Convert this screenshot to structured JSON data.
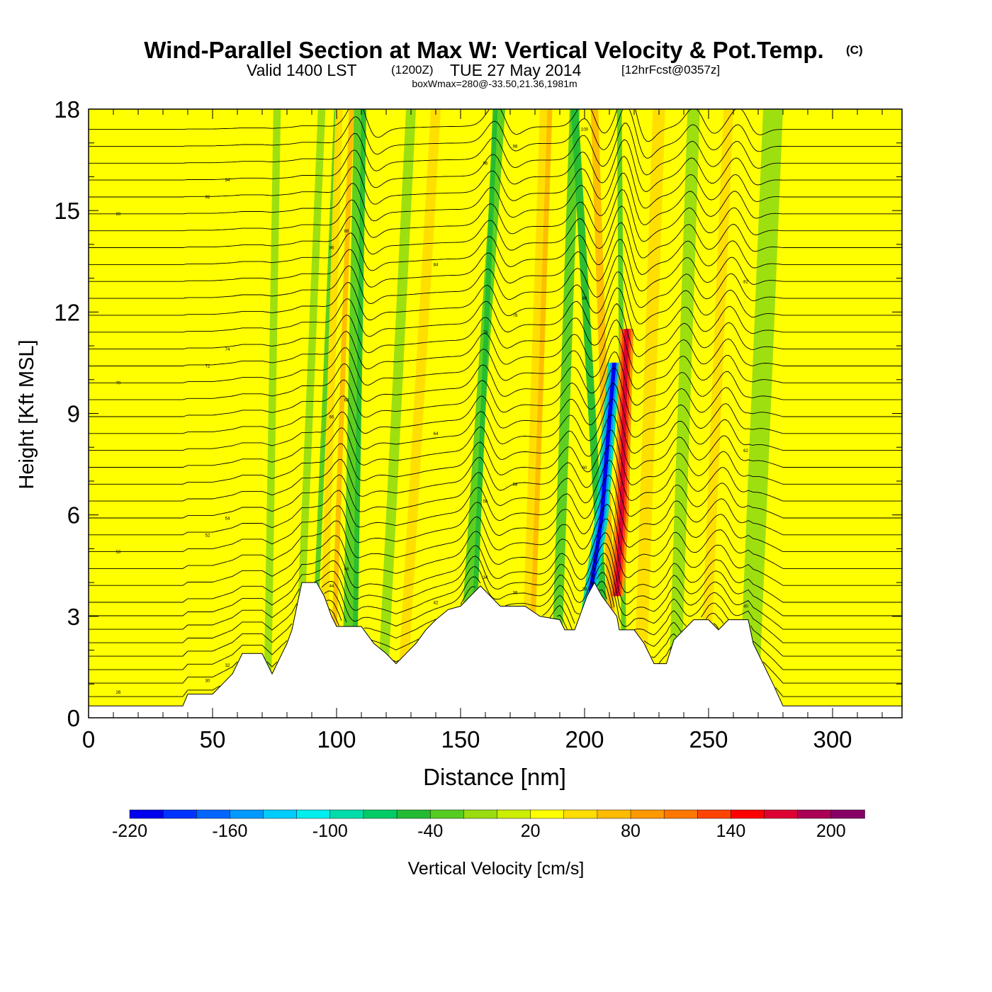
{
  "header": {
    "title": "Wind-Parallel Section at Max W: Vertical Velocity & Pot.Temp.",
    "title_mark": "(C)",
    "valid_prefix": "Valid 1400 LST",
    "valid_utc": "(1200Z)",
    "valid_date": "TUE 27 May 2014",
    "forecast": "[12hrFcst@0357z]",
    "box_info": "boxWmax=280@-33.50,21.36,1981m"
  },
  "chart_data": {
    "type": "heatmap",
    "title": "Wind-Parallel Section at Max W: Vertical Velocity & Pot.Temp.",
    "xlabel": "Distance [nm]",
    "ylabel": "Height [Kft MSL]",
    "xlim": [
      0,
      328
    ],
    "ylim": [
      0,
      18
    ],
    "xticks": [
      "0",
      "50",
      "100",
      "150",
      "200",
      "250",
      "300"
    ],
    "yticks": [
      "0",
      "3",
      "6",
      "9",
      "12",
      "15",
      "18"
    ],
    "colorbar": {
      "label": "Vertical Velocity [cm/s]",
      "ticks": [
        "-220",
        "-160",
        "-100",
        "-40",
        "20",
        "80",
        "140",
        "200"
      ],
      "range": [
        -220,
        220
      ],
      "step": 20,
      "colors": [
        "#0000ee",
        "#0033ff",
        "#0066ff",
        "#0099ff",
        "#00ccff",
        "#00eeee",
        "#00ddaa",
        "#00cc66",
        "#22bb33",
        "#55cc22",
        "#99dd11",
        "#ccee00",
        "#ffff00",
        "#ffdd00",
        "#ffbb00",
        "#ff9900",
        "#ff7700",
        "#ff4400",
        "#ff0000",
        "#dd0033",
        "#aa0055",
        "#880066"
      ]
    },
    "terrain_kft": [
      [
        0,
        0.35
      ],
      [
        38,
        0.35
      ],
      [
        40,
        0.7
      ],
      [
        50,
        0.7
      ],
      [
        54,
        1.0
      ],
      [
        58,
        1.3
      ],
      [
        62,
        1.9
      ],
      [
        70,
        1.9
      ],
      [
        72,
        1.6
      ],
      [
        74,
        1.3
      ],
      [
        76,
        1.6
      ],
      [
        78,
        1.9
      ],
      [
        80,
        2.2
      ],
      [
        82,
        2.6
      ],
      [
        84,
        3.3
      ],
      [
        86,
        4.0
      ],
      [
        92,
        4.0
      ],
      [
        95,
        3.6
      ],
      [
        98,
        3.0
      ],
      [
        100,
        2.7
      ],
      [
        110,
        2.7
      ],
      [
        115,
        2.2
      ],
      [
        120,
        1.9
      ],
      [
        124,
        1.6
      ],
      [
        128,
        1.9
      ],
      [
        132,
        2.2
      ],
      [
        136,
        2.6
      ],
      [
        140,
        2.9
      ],
      [
        145,
        3.2
      ],
      [
        150,
        3.3
      ],
      [
        154,
        3.6
      ],
      [
        158,
        3.9
      ],
      [
        162,
        3.6
      ],
      [
        166,
        3.3
      ],
      [
        176,
        3.3
      ],
      [
        182,
        3.0
      ],
      [
        190,
        2.9
      ],
      [
        192,
        2.6
      ],
      [
        196,
        2.6
      ],
      [
        198,
        3.0
      ],
      [
        201,
        3.6
      ],
      [
        204,
        4.0
      ],
      [
        207,
        3.6
      ],
      [
        210,
        3.3
      ],
      [
        213,
        3.0
      ],
      [
        214,
        2.6
      ],
      [
        220,
        2.6
      ],
      [
        224,
        2.2
      ],
      [
        228,
        1.6
      ],
      [
        233,
        1.6
      ],
      [
        236,
        2.3
      ],
      [
        240,
        2.6
      ],
      [
        244,
        2.9
      ],
      [
        250,
        2.9
      ],
      [
        254,
        2.6
      ],
      [
        258,
        2.9
      ],
      [
        266,
        2.9
      ],
      [
        268,
        2.2
      ],
      [
        272,
        1.6
      ],
      [
        276,
        1.0
      ],
      [
        280,
        0.35
      ],
      [
        328,
        0.35
      ]
    ],
    "bands": [
      {
        "x0": 72,
        "x1": 76,
        "value": -20,
        "width": 3
      },
      {
        "x0": 84,
        "x1": 94,
        "value": -20,
        "width": 3
      },
      {
        "x0": 90,
        "x1": 100,
        "value": -40,
        "width": 2
      },
      {
        "x0": 94,
        "x1": 101,
        "value": 40,
        "width": 3
      },
      {
        "x0": 98,
        "x1": 106,
        "value": 60,
        "width": 2
      },
      {
        "x0": 104,
        "x1": 109,
        "value": -40,
        "width": 4
      },
      {
        "x0": 107,
        "x1": 111,
        "value": -60,
        "width": 2
      },
      {
        "x0": 118,
        "x1": 130,
        "value": -20,
        "width": 4
      },
      {
        "x0": 126,
        "x1": 140,
        "value": 40,
        "width": 4
      },
      {
        "x0": 150,
        "x1": 166,
        "value": -40,
        "width": 4
      },
      {
        "x0": 154,
        "x1": 164,
        "value": -60,
        "width": 2
      },
      {
        "x0": 176,
        "x1": 184,
        "value": 40,
        "width": 4
      },
      {
        "x0": 178,
        "x1": 186,
        "value": 60,
        "width": 2
      },
      {
        "x0": 188,
        "x1": 196,
        "value": -40,
        "width": 4
      },
      {
        "x0": 210,
        "x1": 196,
        "value": -60,
        "width": 3
      },
      {
        "x0": 212,
        "x1": 204,
        "value": 60,
        "width": 3
      },
      {
        "x0": 216,
        "x1": 214,
        "value": -40,
        "width": 2
      },
      {
        "x0": 222,
        "x1": 230,
        "value": 40,
        "width": 5
      },
      {
        "x0": 236,
        "x1": 244,
        "value": -20,
        "width": 5
      },
      {
        "x0": 248,
        "x1": 258,
        "value": 40,
        "width": 4
      },
      {
        "x0": 266,
        "x1": 276,
        "value": -20,
        "width": 8
      }
    ],
    "core": {
      "down": [
        [
          201,
          3.0
        ],
        [
          207,
          6.0
        ],
        [
          210,
          8.8
        ],
        [
          212,
          10.5
        ]
      ],
      "up": [
        [
          213,
          3.6
        ],
        [
          215,
          6.0
        ],
        [
          216,
          9.0
        ],
        [
          217,
          11.5
        ]
      ]
    },
    "isentropes_kft": [
      0.6,
      1.0,
      1.4,
      1.8,
      2.2,
      2.6,
      3.0,
      3.4,
      3.9,
      4.4,
      4.9,
      5.4,
      5.9,
      6.4,
      6.9,
      7.4,
      7.9,
      8.4,
      8.9,
      9.4,
      9.9,
      10.4,
      10.9,
      11.4,
      11.9,
      12.4,
      12.9,
      13.4,
      13.9,
      14.4,
      14.9,
      15.4,
      15.9,
      16.4,
      16.9,
      17.4
    ],
    "isentrope_labels": [
      "26",
      "30",
      "32",
      "34",
      "36",
      "38",
      "40",
      "42",
      "44",
      "46",
      "50",
      "52",
      "54",
      "56",
      "58",
      "60",
      "62",
      "64",
      "66",
      "68",
      "70",
      "72",
      "74",
      "76",
      "78",
      "80",
      "82",
      "84",
      "86",
      "88",
      "90",
      "92",
      "94",
      "96",
      "98",
      "100"
    ]
  }
}
